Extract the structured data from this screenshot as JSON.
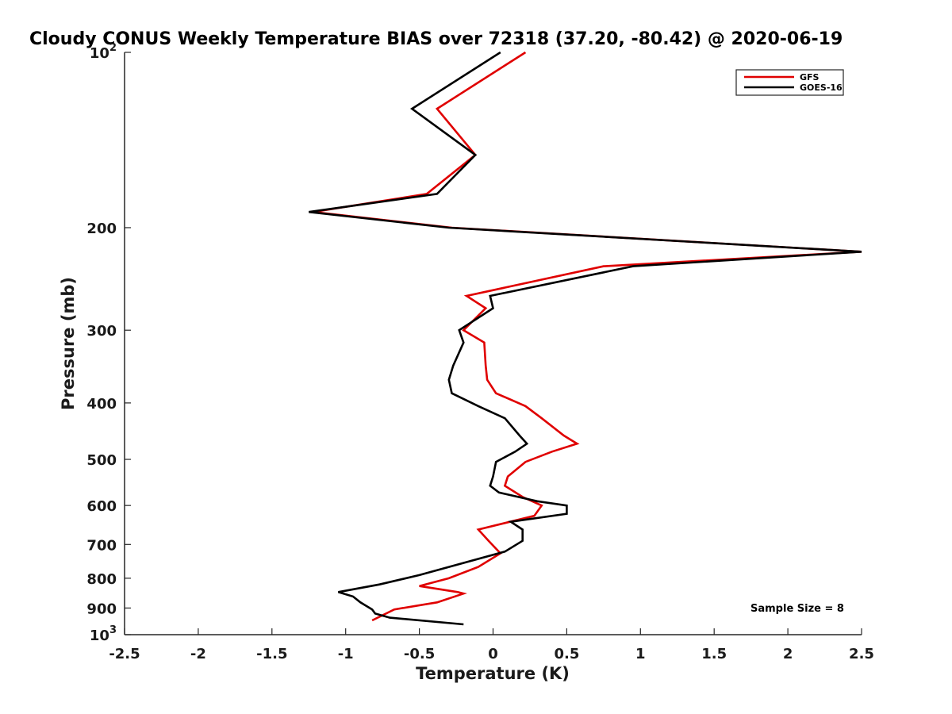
{
  "chart_data": {
    "type": "line",
    "title": "Cloudy CONUS Weekly Temperature BIAS over 72318 (37.20, -80.42) @ 2020-06-19",
    "xlabel": "Temperature (K)",
    "ylabel": "Pressure (mb)",
    "xlim": [
      -2.5,
      2.5
    ],
    "ylim": [
      100,
      1000
    ],
    "yscale": "log",
    "y_reversed": true,
    "x_ticks": [
      -2.5,
      -2,
      -1.5,
      -1,
      -0.5,
      0,
      0.5,
      1,
      1.5,
      2,
      2.5
    ],
    "x_tick_labels": [
      "-2.5",
      "-2",
      "-1.5",
      "-1",
      "-0.5",
      "0",
      "0.5",
      "1",
      "1.5",
      "2",
      "2.5"
    ],
    "y_ticks": [
      100,
      200,
      300,
      400,
      500,
      600,
      700,
      800,
      900,
      1000
    ],
    "y_tick_labels": [
      {
        "base": "10",
        "exp": "2"
      },
      {
        "base": "200",
        "exp": ""
      },
      {
        "base": "300",
        "exp": ""
      },
      {
        "base": "400",
        "exp": ""
      },
      {
        "base": "500",
        "exp": ""
      },
      {
        "base": "600",
        "exp": ""
      },
      {
        "base": "700",
        "exp": ""
      },
      {
        "base": "800",
        "exp": ""
      },
      {
        "base": "900",
        "exp": ""
      },
      {
        "base": "10",
        "exp": "3"
      }
    ],
    "legend_position": "top-right",
    "annotation": "Sample Size = 8",
    "series": [
      {
        "name": "GFS",
        "color": "#e00000",
        "points": [
          [
            0.22,
            100
          ],
          [
            -0.38,
            125
          ],
          [
            -0.12,
            150
          ],
          [
            -0.45,
            175
          ],
          [
            -1.22,
            188
          ],
          [
            -0.28,
            200
          ],
          [
            2.5,
            220
          ],
          [
            0.75,
            233
          ],
          [
            -0.18,
            262
          ],
          [
            -0.05,
            275
          ],
          [
            -0.2,
            300
          ],
          [
            -0.06,
            315
          ],
          [
            -0.05,
            345
          ],
          [
            -0.04,
            365
          ],
          [
            0.02,
            385
          ],
          [
            0.22,
            405
          ],
          [
            0.33,
            425
          ],
          [
            0.48,
            455
          ],
          [
            0.57,
            470
          ],
          [
            0.4,
            485
          ],
          [
            0.22,
            505
          ],
          [
            0.1,
            535
          ],
          [
            0.08,
            555
          ],
          [
            0.2,
            580
          ],
          [
            0.33,
            600
          ],
          [
            0.28,
            625
          ],
          [
            -0.1,
            660
          ],
          [
            -0.03,
            690
          ],
          [
            0.05,
            725
          ],
          [
            -0.1,
            765
          ],
          [
            -0.3,
            800
          ],
          [
            -0.5,
            825
          ],
          [
            -0.24,
            845
          ],
          [
            -0.2,
            850
          ],
          [
            -0.38,
            880
          ],
          [
            -0.67,
            905
          ],
          [
            -0.82,
            945
          ]
        ]
      },
      {
        "name": "GOES-16",
        "color": "#000000",
        "points": [
          [
            0.05,
            100
          ],
          [
            -0.55,
            125
          ],
          [
            -0.12,
            150
          ],
          [
            -0.38,
            175
          ],
          [
            -1.25,
            188
          ],
          [
            -0.3,
            200
          ],
          [
            2.5,
            220
          ],
          [
            0.95,
            233
          ],
          [
            -0.02,
            262
          ],
          [
            0.0,
            275
          ],
          [
            -0.23,
            300
          ],
          [
            -0.2,
            315
          ],
          [
            -0.27,
            345
          ],
          [
            -0.3,
            365
          ],
          [
            -0.28,
            385
          ],
          [
            -0.1,
            405
          ],
          [
            0.08,
            425
          ],
          [
            0.18,
            455
          ],
          [
            0.23,
            470
          ],
          [
            0.15,
            485
          ],
          [
            0.02,
            505
          ],
          [
            0.0,
            535
          ],
          [
            -0.02,
            555
          ],
          [
            0.04,
            570
          ],
          [
            0.3,
            590
          ],
          [
            0.5,
            600
          ],
          [
            0.5,
            620
          ],
          [
            0.12,
            640
          ],
          [
            0.2,
            660
          ],
          [
            0.2,
            690
          ],
          [
            0.08,
            720
          ],
          [
            -0.5,
            790
          ],
          [
            -0.77,
            820
          ],
          [
            -1.05,
            845
          ],
          [
            -0.95,
            860
          ],
          [
            -0.9,
            880
          ],
          [
            -0.82,
            905
          ],
          [
            -0.8,
            920
          ],
          [
            -0.7,
            935
          ],
          [
            -0.2,
            960
          ]
        ]
      }
    ]
  }
}
